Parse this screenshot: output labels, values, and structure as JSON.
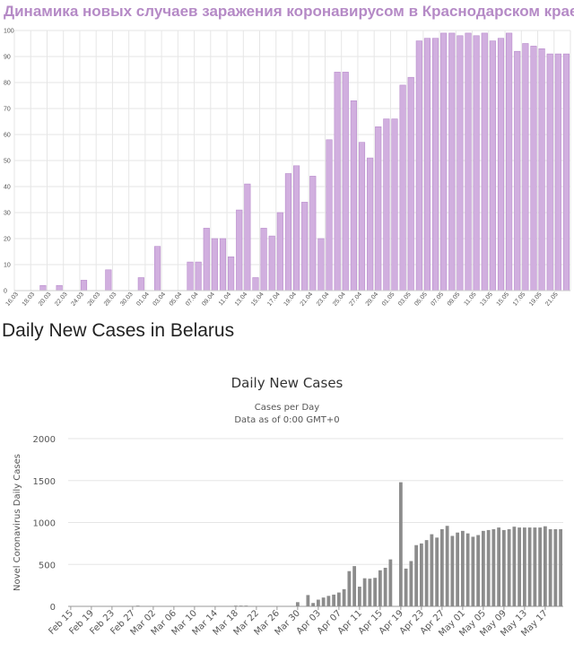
{
  "page": {
    "section_title": "Daily New Cases in Belarus"
  },
  "colors": {
    "chart1_bar": "#d1afdf",
    "chart1_bar_stroke": "#b88ccb",
    "chart1_title": "#b58ac6",
    "chart2_bar": "#8c8c8c",
    "grid": "#e6e6e6"
  },
  "chart_data": [
    {
      "type": "bar",
      "title": "Динамика новых случаев заражения коронавирусом в Краснодарском крае",
      "xlabel": "",
      "ylabel": "",
      "ylim": [
        0,
        100
      ],
      "yticks": [
        0,
        10,
        20,
        30,
        40,
        50,
        60,
        70,
        80,
        90,
        100
      ],
      "grid": true,
      "categories": [
        "16.03",
        "17.03",
        "18.03",
        "19.03",
        "20.03",
        "21.03",
        "22.03",
        "23.03",
        "24.03",
        "25.03",
        "26.03",
        "27.03",
        "28.03",
        "29.03",
        "30.03",
        "31.03",
        "01.04",
        "02.04",
        "03.04",
        "04.04",
        "05.04",
        "06.04",
        "07.04",
        "08.04",
        "09.04",
        "10.04",
        "11.04",
        "12.04",
        "13.04",
        "14.04",
        "15.04",
        "16.04",
        "17.04",
        "18.04",
        "19.04",
        "20.04",
        "21.04",
        "22.04",
        "23.04",
        "24.04",
        "25.04",
        "26.04",
        "27.04",
        "28.04",
        "29.04",
        "30.04",
        "01.05",
        "02.05",
        "03.05",
        "04.05",
        "05.05",
        "06.05",
        "07.05",
        "08.05",
        "09.05",
        "10.05",
        "11.05",
        "12.05",
        "13.05",
        "14.05",
        "15.05",
        "16.05",
        "17.05",
        "18.05",
        "19.05",
        "20.05",
        "21.05",
        "22.05"
      ],
      "tick_labels": [
        "16.03",
        "18.03",
        "20.03",
        "22.03",
        "24.03",
        "26.03",
        "28.03",
        "30.03",
        "01.04",
        "03.04",
        "05.04",
        "07.04",
        "09.04",
        "11.04",
        "13.04",
        "15.04",
        "17.04",
        "19.04",
        "21.04",
        "23.04",
        "25.04",
        "27.04",
        "29.04",
        "01.05",
        "03.05",
        "05.05",
        "07.05",
        "09.05",
        "11.05",
        "13.05",
        "15.05",
        "17.05",
        "19.05",
        "21.05"
      ],
      "values": [
        0,
        0,
        0,
        2,
        0,
        2,
        0,
        0,
        4,
        0,
        0,
        8,
        0,
        0,
        0,
        5,
        0,
        17,
        0,
        0,
        0,
        11,
        11,
        24,
        20,
        20,
        13,
        31,
        41,
        5,
        24,
        21,
        30,
        45,
        48,
        34,
        44,
        20,
        58,
        84,
        84,
        73,
        57,
        51,
        63,
        66,
        66,
        79,
        82,
        96,
        97,
        97,
        99,
        99,
        98,
        99,
        98,
        99,
        96,
        97,
        99,
        92,
        95,
        94,
        93,
        91,
        91,
        91
      ]
    },
    {
      "type": "bar",
      "title": "Daily New Cases",
      "subtitle": "Cases per Day",
      "note": "Data as of 0:00 GMT+0",
      "xlabel": "",
      "ylabel": "Novel Coronavirus Daily Cases",
      "ylim": [
        0,
        2000
      ],
      "yticks": [
        0,
        500,
        1000,
        1500,
        2000
      ],
      "grid": true,
      "categories": [
        "Feb 15",
        "Feb 16",
        "Feb 17",
        "Feb 18",
        "Feb 19",
        "Feb 20",
        "Feb 21",
        "Feb 22",
        "Feb 23",
        "Feb 24",
        "Feb 25",
        "Feb 26",
        "Feb 27",
        "Feb 28",
        "Feb 29",
        "Mar 01",
        "Mar 02",
        "Mar 03",
        "Mar 04",
        "Mar 05",
        "Mar 06",
        "Mar 07",
        "Mar 08",
        "Mar 09",
        "Mar 10",
        "Mar 11",
        "Mar 12",
        "Mar 13",
        "Mar 14",
        "Mar 15",
        "Mar 16",
        "Mar 17",
        "Mar 18",
        "Mar 19",
        "Mar 20",
        "Mar 21",
        "Mar 22",
        "Mar 23",
        "Mar 24",
        "Mar 25",
        "Mar 26",
        "Mar 27",
        "Mar 28",
        "Mar 29",
        "Mar 30",
        "Mar 31",
        "Apr 01",
        "Apr 02",
        "Apr 03",
        "Apr 04",
        "Apr 05",
        "Apr 06",
        "Apr 07",
        "Apr 08",
        "Apr 09",
        "Apr 10",
        "Apr 11",
        "Apr 12",
        "Apr 13",
        "Apr 14",
        "Apr 15",
        "Apr 16",
        "Apr 17",
        "Apr 18",
        "Apr 19",
        "Apr 20",
        "Apr 21",
        "Apr 22",
        "Apr 23",
        "Apr 24",
        "Apr 25",
        "Apr 26",
        "Apr 27",
        "Apr 28",
        "Apr 29",
        "Apr 30",
        "May 01",
        "May 02",
        "May 03",
        "May 04",
        "May 05",
        "May 06",
        "May 07",
        "May 08",
        "May 09",
        "May 10",
        "May 11",
        "May 12",
        "May 13",
        "May 14",
        "May 15",
        "May 16",
        "May 17",
        "May 18",
        "May 19",
        "May 20"
      ],
      "tick_labels": [
        "Feb 15",
        "Feb 19",
        "Feb 23",
        "Feb 27",
        "Mar 02",
        "Mar 06",
        "Mar 10",
        "Mar 14",
        "Mar 18",
        "Mar 22",
        "Mar 26",
        "Mar 30",
        "Apr 03",
        "Apr 07",
        "Apr 11",
        "Apr 15",
        "Apr 19",
        "Apr 23",
        "Apr 27",
        "May 01",
        "May 05",
        "May 09",
        "May 13",
        "May 17"
      ],
      "values": [
        0,
        0,
        0,
        0,
        0,
        0,
        0,
        0,
        0,
        0,
        0,
        0,
        0,
        1,
        0,
        0,
        0,
        0,
        0,
        0,
        0,
        0,
        0,
        0,
        0,
        0,
        0,
        0,
        0,
        0,
        0,
        0,
        3,
        8,
        5,
        0,
        0,
        0,
        0,
        0,
        0,
        0,
        0,
        0,
        50,
        0,
        135,
        40,
        80,
        105,
        125,
        140,
        165,
        205,
        420,
        480,
        235,
        335,
        330,
        340,
        430,
        460,
        560,
        0,
        1480,
        450,
        540,
        730,
        750,
        790,
        860,
        820,
        920,
        960,
        840,
        880,
        900,
        870,
        830,
        850,
        900,
        910,
        920,
        940,
        910,
        920,
        950,
        940,
        940,
        940,
        940,
        940,
        955,
        920,
        920,
        920
      ]
    }
  ]
}
